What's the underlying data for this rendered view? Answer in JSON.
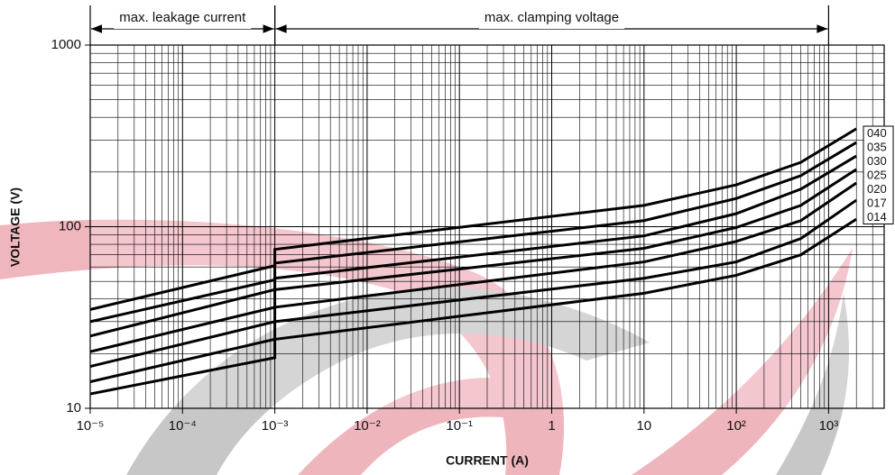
{
  "chart_data": {
    "type": "line",
    "log_x": true,
    "log_y": true,
    "grid": true,
    "minor_grid": true,
    "legend": "right",
    "xlabel": "CURRENT (A)",
    "ylabel": "VOLTAGE (V)",
    "xlim": [
      1e-05,
      4000
    ],
    "ylim": [
      10,
      1000
    ],
    "xticks": [
      {
        "value": 1e-05,
        "label": "10⁻⁵"
      },
      {
        "value": 0.0001,
        "label": "10⁻⁴"
      },
      {
        "value": 0.001,
        "label": "10⁻³"
      },
      {
        "value": 0.01,
        "label": "10⁻²"
      },
      {
        "value": 0.1,
        "label": "10⁻¹"
      },
      1,
      10,
      {
        "value": 100,
        "label": "10²"
      },
      {
        "value": 1000,
        "label": "10³"
      }
    ],
    "yticks": [
      10,
      100,
      1000
    ],
    "annotations": [
      {
        "text": "max. leakage current",
        "x": [
          1e-05,
          0.001
        ]
      },
      {
        "text": "max. clamping voltage",
        "x": [
          0.001,
          1000
        ]
      }
    ],
    "x": [
      1e-05,
      0.001,
      0.001,
      10,
      100,
      500,
      2000
    ],
    "series": [
      {
        "name": "040",
        "color": "#000000",
        "values": [
          35,
          61,
          75,
          131,
          170,
          226,
          346
        ]
      },
      {
        "name": "035",
        "color": "#000000",
        "values": [
          30,
          51,
          63,
          108,
          143,
          191,
          291
        ]
      },
      {
        "name": "030",
        "color": "#000000",
        "values": [
          25,
          45,
          52,
          89,
          118,
          161,
          245
        ]
      },
      {
        "name": "025",
        "color": "#000000",
        "values": [
          20.5,
          36,
          45,
          76,
          99,
          131,
          207
        ]
      },
      {
        "name": "020",
        "color": "#000000",
        "values": [
          17,
          30,
          36,
          64,
          83,
          108,
          174
        ]
      },
      {
        "name": "017",
        "color": "#000000",
        "values": [
          14,
          24,
          30,
          52,
          64,
          86,
          140
        ]
      },
      {
        "name": "014",
        "color": "#000000",
        "values": [
          12,
          19,
          24,
          43,
          54,
          70,
          110
        ]
      }
    ]
  }
}
